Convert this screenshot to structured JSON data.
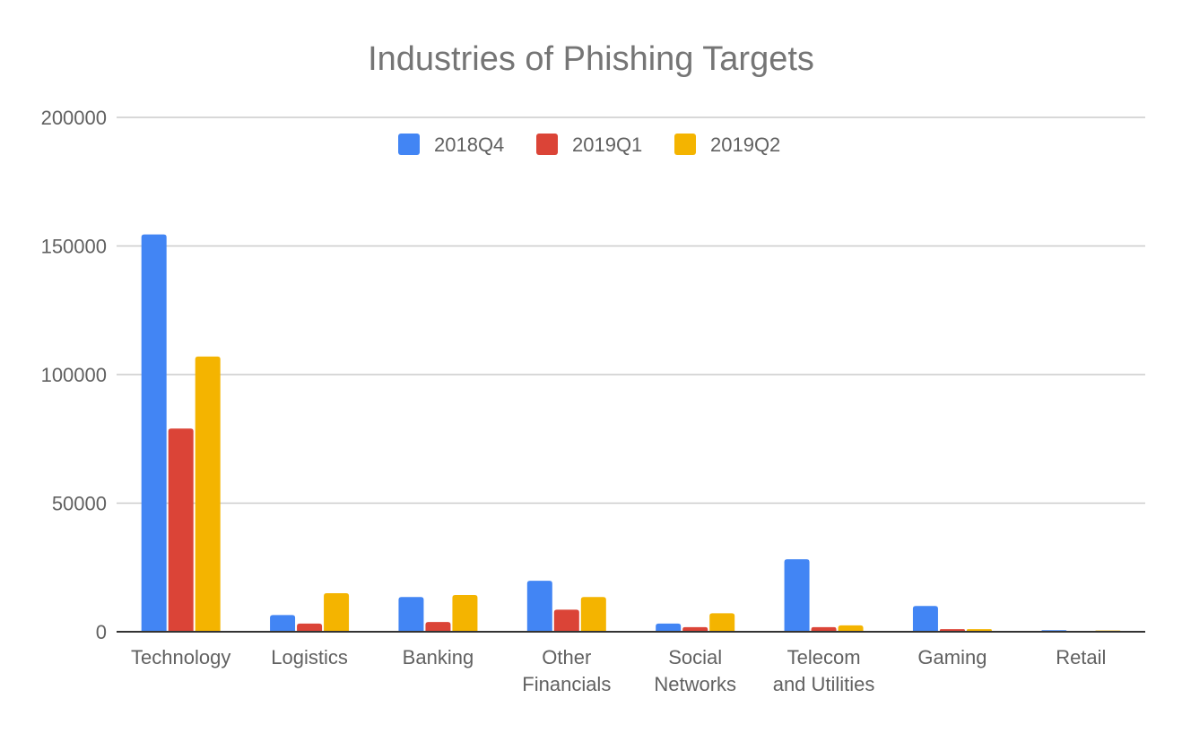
{
  "chart_data": {
    "type": "bar",
    "title": "Industries of Phishing Targets",
    "xlabel": "",
    "ylabel": "",
    "ylim": [
      0,
      200000
    ],
    "yticks": [
      "0",
      "50000",
      "100000",
      "150000",
      "200000"
    ],
    "categories": [
      [
        "Technology"
      ],
      [
        "Logistics"
      ],
      [
        "Banking"
      ],
      [
        "Other",
        "Financials"
      ],
      [
        "Social",
        "Networks"
      ],
      [
        "Telecom",
        "and Utilities"
      ],
      [
        "Gaming"
      ],
      [
        "Retail"
      ]
    ],
    "series": [
      {
        "name": "2018Q4",
        "color": "#4285F4",
        "values": [
          154500,
          6500,
          13500,
          19800,
          3200,
          28200,
          10000,
          600
        ]
      },
      {
        "name": "2019Q1",
        "color": "#DB4437",
        "values": [
          79000,
          3200,
          3800,
          8600,
          1800,
          1800,
          1000,
          100
        ]
      },
      {
        "name": "2019Q2",
        "color": "#F4B400",
        "values": [
          107000,
          15000,
          14300,
          13500,
          7200,
          2500,
          1000,
          500
        ]
      }
    ],
    "grid": true,
    "legend": "top-center"
  }
}
